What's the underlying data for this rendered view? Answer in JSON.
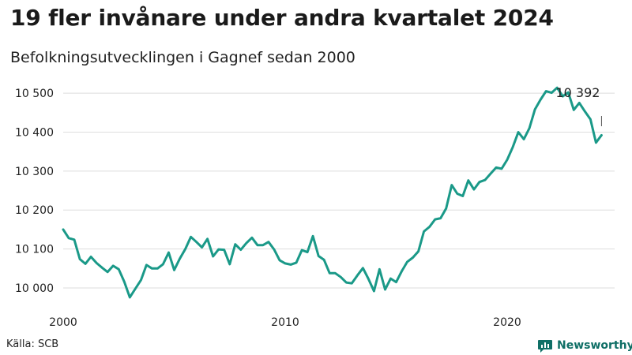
{
  "header": {
    "title": "19 fler invånare under andra kvartalet 2024",
    "subtitle": "Befolkningsutvecklingen i Gagnef sedan 2000"
  },
  "footer": {
    "source": "Källa: SCB",
    "brand": "Newsworthy"
  },
  "colors": {
    "line": "#1a9988",
    "grid": "#dddddd",
    "text": "#222222",
    "brand": "#0f6f66"
  },
  "icons": {
    "brand_logo": "bar-chart-icon"
  },
  "chart_data": {
    "type": "line",
    "title": "19 fler invånare under andra kvartalet 2024",
    "subtitle": "Befolkningsutvecklingen i Gagnef sedan 2000",
    "xlabel": "",
    "ylabel": "",
    "x_ticks": [
      "2000",
      "2010",
      "2020"
    ],
    "x_tick_values": [
      2000,
      2010,
      2020
    ],
    "y_ticks": [
      "10 000",
      "10 100",
      "10 200",
      "10 300",
      "10 400",
      "10 500"
    ],
    "y_tick_values": [
      10000,
      10100,
      10200,
      10300,
      10400,
      10500
    ],
    "ylim": [
      9975,
      10530
    ],
    "xlim": [
      1999.8,
      2024.9
    ],
    "grid": "horizontal",
    "annotation": {
      "label": "10 392",
      "value": 10392,
      "period": "2024 Q2"
    },
    "series": [
      {
        "name": "",
        "frequency": "quarterly",
        "start": "2000 Q1",
        "values": [
          10150,
          10128,
          10124,
          10074,
          10062,
          10080,
          10064,
          10052,
          10041,
          10057,
          10048,
          10016,
          9976,
          9998,
          10020,
          10059,
          10050,
          10050,
          10061,
          10091,
          10046,
          10075,
          10100,
          10131,
          10118,
          10104,
          10126,
          10081,
          10099,
          10098,
          10061,
          10112,
          10098,
          10115,
          10129,
          10110,
          10110,
          10118,
          10099,
          10071,
          10063,
          10060,
          10065,
          10097,
          10092,
          10133,
          10082,
          10072,
          10038,
          10038,
          10028,
          10014,
          10012,
          10032,
          10051,
          10023,
          9992,
          10048,
          9996,
          10024,
          10015,
          10043,
          10067,
          10078,
          10094,
          10145,
          10157,
          10176,
          10179,
          10204,
          10264,
          10242,
          10236,
          10276,
          10253,
          10272,
          10277,
          10293,
          10309,
          10306,
          10329,
          10361,
          10400,
          10382,
          10410,
          10458,
          10483,
          10505,
          10501,
          10514,
          10492,
          10502,
          10457,
          10475,
          10453,
          10433,
          10373,
          10392
        ]
      }
    ]
  }
}
